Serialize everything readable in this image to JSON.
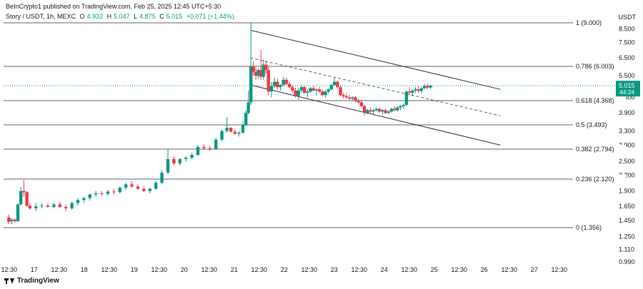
{
  "header": {
    "publisher": "BeInCrypto1 published on TradingView.com, Feb 25, 2025 12:45 UTC+5:30",
    "symbol": "Story / USDT, 1h, MEXC",
    "open_label": "O",
    "open_value": "4.932",
    "high_label": "H",
    "high_value": "5.047",
    "low_label": "L",
    "low_value": "4.875",
    "close_label": "C",
    "close_value": "5.015",
    "change": "+0.071 (+1.44%)"
  },
  "brand": {
    "name": "TradingView",
    "icon": "tradingview-logo-icon"
  },
  "chart_data": {
    "type": "candlestick",
    "quote_currency": "USDT",
    "price_axis_ticks": [
      "8.500",
      "7.500",
      "6.500",
      "5.500",
      "4.500",
      "3.900",
      "3.300",
      "2.900",
      "2.500",
      "2.200",
      "1.900",
      "1.650",
      "1.450",
      "1.250",
      "1.110",
      "0.990"
    ],
    "time_axis_ticks": [
      "12:30",
      "17",
      "12:30",
      "18",
      "12:30",
      "19",
      "12:30",
      "20",
      "12:30",
      "21",
      "12:30",
      "22",
      "12:30",
      "23",
      "12:30",
      "24",
      "12:30",
      "25",
      "12:30",
      "26",
      "12:30",
      "27",
      "12:30"
    ],
    "fib_levels": [
      {
        "ratio": 1,
        "price": 9.0,
        "label": "1 (9.000)"
      },
      {
        "ratio": 0.786,
        "price": 6.003,
        "label": "0.786 (6.003)"
      },
      {
        "ratio": 0.618,
        "price": 4.368,
        "label": "0.618 (4.368)"
      },
      {
        "ratio": 0.5,
        "price": 3.493,
        "label": "0.5 (3.493)"
      },
      {
        "ratio": 0.382,
        "price": 2.794,
        "label": "0.382 (2.794)"
      },
      {
        "ratio": 0.236,
        "price": 2.12,
        "label": "0.236 (2.120)"
      },
      {
        "ratio": 0,
        "price": 1.356,
        "label": "0 (1.356)"
      }
    ],
    "current_price": {
      "value": "5.015",
      "countdown": "44:24",
      "color": "#089981"
    },
    "up_color": "#089981",
    "down_color": "#f23645",
    "channel": {
      "upper": [
        [
          21.05,
          8.4
        ],
        [
          26.05,
          4.85
        ]
      ],
      "middle": [
        [
          21.05,
          6.5
        ],
        [
          26.05,
          3.8
        ]
      ],
      "lower": [
        [
          21.05,
          5.05
        ],
        [
          26.05,
          2.9
        ]
      ]
    },
    "candles": [
      [
        16.22,
        1.49,
        1.53,
        1.4,
        1.43
      ],
      [
        16.28,
        1.44,
        1.48,
        1.4,
        1.46
      ],
      [
        16.34,
        1.46,
        1.48,
        1.42,
        1.44
      ],
      [
        16.4,
        1.44,
        1.7,
        1.43,
        1.68
      ],
      [
        16.46,
        1.68,
        1.97,
        1.66,
        1.9
      ],
      [
        16.52,
        1.9,
        2.1,
        1.8,
        1.88
      ],
      [
        16.58,
        1.88,
        1.9,
        1.64,
        1.66
      ],
      [
        16.64,
        1.66,
        1.7,
        1.6,
        1.62
      ],
      [
        16.76,
        1.62,
        1.7,
        1.58,
        1.65
      ],
      [
        16.88,
        1.65,
        1.7,
        1.62,
        1.66
      ],
      [
        17.0,
        1.66,
        1.7,
        1.63,
        1.64
      ],
      [
        17.12,
        1.64,
        1.7,
        1.62,
        1.68
      ],
      [
        17.24,
        1.68,
        1.72,
        1.62,
        1.64
      ],
      [
        17.36,
        1.64,
        1.68,
        1.58,
        1.62
      ],
      [
        17.48,
        1.62,
        1.72,
        1.6,
        1.7
      ],
      [
        17.6,
        1.7,
        1.78,
        1.66,
        1.75
      ],
      [
        17.72,
        1.75,
        1.8,
        1.7,
        1.78
      ],
      [
        17.84,
        1.78,
        1.86,
        1.74,
        1.84
      ],
      [
        17.96,
        1.84,
        1.9,
        1.8,
        1.86
      ],
      [
        18.08,
        1.86,
        1.9,
        1.82,
        1.85
      ],
      [
        18.2,
        1.85,
        1.92,
        1.82,
        1.89
      ],
      [
        18.32,
        1.89,
        1.94,
        1.84,
        1.88
      ],
      [
        18.44,
        1.88,
        1.98,
        1.86,
        1.96
      ],
      [
        18.56,
        1.96,
        2.05,
        1.92,
        2.02
      ],
      [
        18.68,
        2.02,
        2.08,
        1.96,
        1.98
      ],
      [
        18.8,
        1.98,
        2.02,
        1.92,
        1.94
      ],
      [
        18.92,
        1.94,
        1.98,
        1.88,
        1.9
      ],
      [
        19.04,
        1.9,
        1.96,
        1.86,
        1.94
      ],
      [
        19.16,
        1.94,
        2.08,
        1.92,
        2.05
      ],
      [
        19.28,
        2.05,
        2.3,
        2.02,
        2.25
      ],
      [
        19.4,
        2.25,
        2.8,
        2.22,
        2.55
      ],
      [
        19.52,
        2.55,
        2.62,
        2.4,
        2.45
      ],
      [
        19.64,
        2.45,
        2.58,
        2.4,
        2.55
      ],
      [
        19.76,
        2.55,
        2.62,
        2.48,
        2.58
      ],
      [
        19.88,
        2.58,
        2.7,
        2.54,
        2.65
      ],
      [
        20.0,
        2.65,
        2.9,
        2.62,
        2.85
      ],
      [
        20.12,
        2.85,
        2.92,
        2.78,
        2.82
      ],
      [
        20.24,
        2.82,
        2.88,
        2.74,
        2.8
      ],
      [
        20.36,
        2.8,
        3.1,
        2.78,
        3.05
      ],
      [
        20.48,
        3.05,
        3.35,
        3.0,
        3.3
      ],
      [
        20.58,
        3.3,
        3.75,
        3.25,
        3.4
      ],
      [
        20.66,
        3.4,
        3.42,
        3.25,
        3.28
      ],
      [
        20.74,
        3.28,
        3.34,
        3.18,
        3.22
      ],
      [
        20.82,
        3.22,
        3.3,
        3.14,
        3.25
      ],
      [
        20.9,
        3.25,
        3.6,
        3.22,
        3.5
      ],
      [
        20.96,
        3.5,
        4.0,
        3.45,
        3.9
      ],
      [
        21.01,
        3.9,
        4.8,
        3.85,
        4.3
      ],
      [
        21.06,
        4.3,
        9.0,
        4.2,
        6.0
      ],
      [
        21.11,
        6.0,
        6.3,
        5.5,
        5.7
      ],
      [
        21.16,
        5.7,
        5.95,
        5.3,
        5.5
      ],
      [
        21.21,
        5.5,
        5.9,
        5.35,
        5.8
      ],
      [
        21.26,
        5.8,
        7.0,
        5.3,
        5.45
      ],
      [
        21.31,
        5.45,
        6.4,
        5.3,
        6.1
      ],
      [
        21.36,
        6.1,
        6.3,
        5.6,
        5.8
      ],
      [
        21.41,
        5.8,
        6.0,
        4.6,
        4.75
      ],
      [
        21.47,
        4.75,
        5.2,
        4.5,
        5.0
      ],
      [
        21.53,
        5.0,
        5.4,
        4.9,
        5.2
      ],
      [
        21.59,
        5.2,
        5.35,
        4.85,
        4.95
      ],
      [
        21.65,
        4.95,
        5.1,
        4.8,
        5.05
      ],
      [
        21.71,
        5.05,
        5.45,
        5.0,
        5.3
      ],
      [
        21.77,
        5.3,
        5.4,
        5.05,
        5.1
      ],
      [
        21.83,
        5.1,
        5.2,
        4.9,
        4.95
      ],
      [
        21.89,
        4.95,
        5.05,
        4.7,
        4.8
      ],
      [
        21.95,
        4.8,
        4.92,
        4.5,
        4.55
      ],
      [
        22.01,
        4.55,
        4.9,
        4.4,
        4.8
      ],
      [
        22.07,
        4.8,
        5.05,
        4.7,
        4.95
      ],
      [
        22.13,
        4.95,
        5.0,
        4.65,
        4.7
      ],
      [
        22.19,
        4.7,
        4.85,
        4.5,
        4.75
      ],
      [
        22.25,
        4.75,
        4.95,
        4.7,
        4.9
      ],
      [
        22.31,
        4.9,
        5.0,
        4.75,
        4.8
      ],
      [
        22.37,
        4.8,
        4.9,
        4.6,
        4.85
      ],
      [
        22.43,
        4.85,
        4.95,
        4.7,
        4.75
      ],
      [
        22.49,
        4.75,
        4.85,
        4.55,
        4.6
      ],
      [
        22.55,
        4.6,
        4.8,
        4.5,
        4.75
      ],
      [
        22.61,
        4.75,
        4.9,
        4.65,
        4.85
      ],
      [
        22.67,
        4.85,
        5.1,
        4.8,
        5.05
      ],
      [
        22.73,
        5.05,
        5.4,
        5.0,
        5.2
      ],
      [
        22.79,
        5.2,
        5.25,
        4.9,
        4.95
      ],
      [
        22.85,
        4.95,
        5.0,
        4.55,
        4.6
      ],
      [
        22.91,
        4.6,
        4.7,
        4.45,
        4.55
      ],
      [
        22.97,
        4.55,
        4.65,
        4.45,
        4.5
      ],
      [
        23.03,
        4.5,
        4.6,
        4.4,
        4.45
      ],
      [
        23.09,
        4.45,
        4.55,
        4.35,
        4.5
      ],
      [
        23.15,
        4.5,
        4.55,
        4.3,
        4.35
      ],
      [
        23.21,
        4.35,
        4.45,
        4.25,
        4.3
      ],
      [
        23.27,
        4.3,
        4.4,
        4.1,
        4.15
      ],
      [
        23.33,
        4.15,
        4.2,
        3.8,
        3.9
      ],
      [
        23.39,
        3.9,
        4.05,
        3.85,
        4.0
      ],
      [
        23.45,
        4.0,
        4.1,
        3.9,
        3.95
      ],
      [
        23.51,
        3.95,
        4.05,
        3.85,
        4.0
      ],
      [
        23.57,
        4.0,
        4.1,
        3.95,
        4.05
      ],
      [
        23.63,
        4.05,
        4.1,
        3.9,
        3.95
      ],
      [
        23.69,
        3.95,
        4.05,
        3.85,
        4.0
      ],
      [
        23.75,
        4.0,
        4.05,
        3.85,
        3.9
      ],
      [
        23.81,
        3.9,
        4.0,
        3.85,
        3.95
      ],
      [
        23.87,
        3.95,
        4.1,
        3.9,
        4.05
      ],
      [
        23.93,
        4.05,
        4.15,
        3.95,
        4.0
      ],
      [
        23.99,
        4.0,
        4.15,
        3.95,
        4.1
      ],
      [
        24.05,
        4.1,
        4.2,
        4.0,
        4.15
      ],
      [
        24.11,
        4.15,
        4.25,
        4.05,
        4.2
      ],
      [
        24.17,
        4.2,
        4.8,
        4.15,
        4.75
      ],
      [
        24.23,
        4.75,
        4.95,
        4.6,
        4.7
      ],
      [
        24.29,
        4.7,
        4.85,
        4.55,
        4.8
      ],
      [
        24.35,
        4.8,
        4.95,
        4.7,
        4.85
      ],
      [
        24.41,
        4.85,
        5.0,
        4.7,
        4.78
      ],
      [
        24.47,
        4.78,
        4.95,
        4.65,
        4.9
      ],
      [
        24.53,
        4.9,
        5.1,
        4.85,
        5.0
      ],
      [
        24.59,
        5.0,
        5.1,
        4.85,
        4.93
      ],
      [
        24.65,
        4.93,
        5.06,
        4.87,
        5.02
      ]
    ]
  }
}
